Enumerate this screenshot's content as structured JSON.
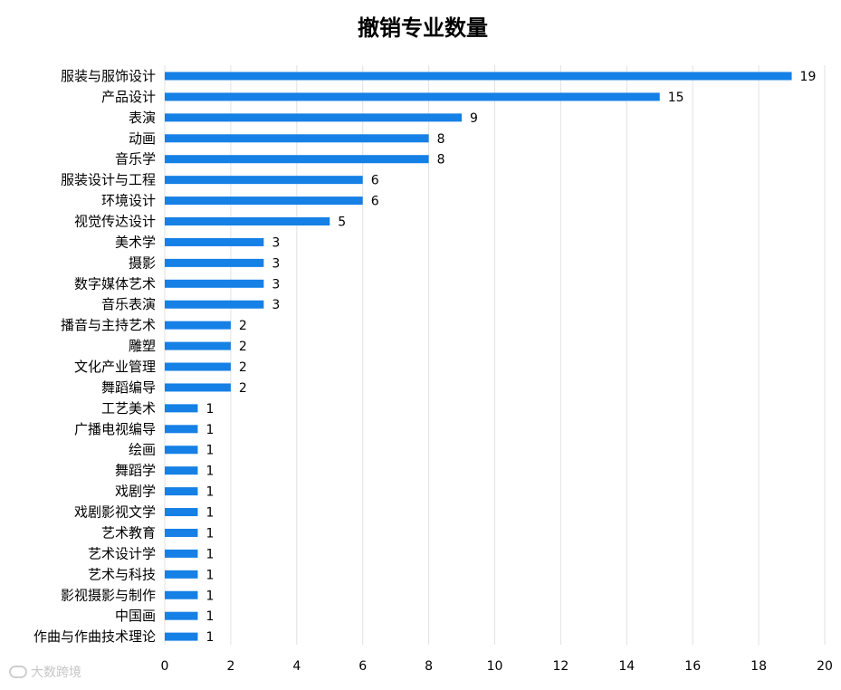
{
  "chart_data": {
    "type": "bar",
    "orientation": "horizontal",
    "title": "撤销专业数量",
    "categories": [
      "服装与服饰设计",
      "产品设计",
      "表演",
      "动画",
      "音乐学",
      "服装设计与工程",
      "环境设计",
      "视觉传达设计",
      "美术学",
      "摄影",
      "数字媒体艺术",
      "音乐表演",
      "播音与主持艺术",
      "雕塑",
      "文化产业管理",
      "舞蹈编导",
      "工艺美术",
      "广播电视编导",
      "绘画",
      "舞蹈学",
      "戏剧学",
      "戏剧影视文学",
      "艺术教育",
      "艺术设计学",
      "艺术与科技",
      "影视摄影与制作",
      "中国画",
      "作曲与作曲技术理论"
    ],
    "values": [
      19,
      15,
      9,
      8,
      8,
      6,
      6,
      5,
      3,
      3,
      3,
      3,
      2,
      2,
      2,
      2,
      1,
      1,
      1,
      1,
      1,
      1,
      1,
      1,
      1,
      1,
      1,
      1
    ],
    "xlim": [
      0,
      20
    ],
    "xticks": [
      0,
      2,
      4,
      6,
      8,
      10,
      12,
      14,
      16,
      18,
      20
    ],
    "grid": "vertical",
    "bar_color": "#1580e6"
  },
  "watermark": {
    "text": "大数跨境",
    "icon": "chat-bubble-icon"
  }
}
